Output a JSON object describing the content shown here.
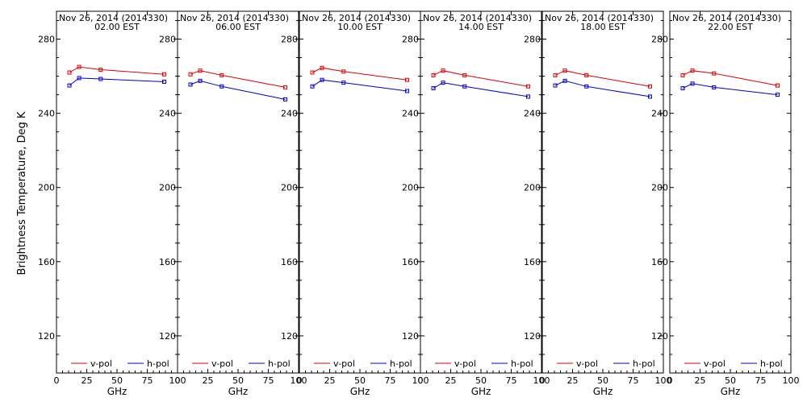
{
  "figure": {
    "ylabel": "Brightness Temperature, Deg K"
  },
  "chart_data": [
    {
      "type": "line",
      "title_line1": "Nov 26, 2014 (2014330)",
      "title_line2": "02.00 EST",
      "xlabel": "GHz",
      "ylabel": "Brightness Temperature, Deg K",
      "xlim": [
        0,
        100
      ],
      "ylim": [
        100,
        295
      ],
      "x_ticks": [
        0,
        25,
        50,
        75,
        100
      ],
      "y_ticks": [
        120,
        160,
        200,
        240,
        280
      ],
      "legend": "bottom",
      "series": [
        {
          "name": "v-pol",
          "color": "#dd0000",
          "x": [
            10.7,
            18.7,
            36.5,
            89.0
          ],
          "y": [
            262,
            265,
            263.5,
            261
          ]
        },
        {
          "name": "h-pol",
          "color": "#0000cc",
          "x": [
            10.7,
            18.7,
            36.5,
            89.0
          ],
          "y": [
            255,
            259,
            258.5,
            257
          ]
        }
      ]
    },
    {
      "type": "line",
      "title_line1": "Nov 26, 2014 (2014330)",
      "title_line2": "06.00 EST",
      "xlabel": "GHz",
      "ylabel": "",
      "xlim": [
        0,
        100
      ],
      "ylim": [
        100,
        295
      ],
      "x_ticks": [
        0,
        25,
        50,
        75,
        100
      ],
      "y_ticks": [
        120,
        160,
        200,
        240,
        280
      ],
      "legend": "bottom",
      "series": [
        {
          "name": "v-pol",
          "color": "#dd0000",
          "x": [
            10.7,
            18.7,
            36.5,
            89.0
          ],
          "y": [
            261,
            263,
            260.5,
            254
          ]
        },
        {
          "name": "h-pol",
          "color": "#0000cc",
          "x": [
            10.7,
            18.7,
            36.5,
            89.0
          ],
          "y": [
            255.5,
            257.5,
            254.5,
            247.5
          ]
        }
      ]
    },
    {
      "type": "line",
      "title_line1": "Nov 26, 2014 (2014330)",
      "title_line2": "10.00 EST",
      "xlabel": "GHz",
      "ylabel": "",
      "xlim": [
        0,
        100
      ],
      "ylim": [
        100,
        295
      ],
      "x_ticks": [
        0,
        25,
        50,
        75,
        100
      ],
      "y_ticks": [
        120,
        160,
        200,
        240,
        280
      ],
      "legend": "bottom",
      "series": [
        {
          "name": "v-pol",
          "color": "#dd0000",
          "x": [
            10.7,
            18.7,
            36.5,
            89.0
          ],
          "y": [
            262,
            264.5,
            262.5,
            258
          ]
        },
        {
          "name": "h-pol",
          "color": "#0000cc",
          "x": [
            10.7,
            18.7,
            36.5,
            89.0
          ],
          "y": [
            254.5,
            258,
            256.5,
            252
          ]
        }
      ]
    },
    {
      "type": "line",
      "title_line1": "Nov 26, 2014 (2014330)",
      "title_line2": "14.00 EST",
      "xlabel": "GHz",
      "ylabel": "",
      "xlim": [
        0,
        100
      ],
      "ylim": [
        100,
        295
      ],
      "x_ticks": [
        0,
        25,
        50,
        75,
        100
      ],
      "y_ticks": [
        120,
        160,
        200,
        240,
        280
      ],
      "legend": "bottom",
      "series": [
        {
          "name": "v-pol",
          "color": "#dd0000",
          "x": [
            10.7,
            18.7,
            36.5,
            89.0
          ],
          "y": [
            260.5,
            263,
            260.5,
            254.5
          ]
        },
        {
          "name": "h-pol",
          "color": "#0000cc",
          "x": [
            10.7,
            18.7,
            36.5,
            89.0
          ],
          "y": [
            253.5,
            256.5,
            254.5,
            249
          ]
        }
      ]
    },
    {
      "type": "line",
      "title_line1": "Nov 26, 2014 (2014330)",
      "title_line2": "18.00 EST",
      "xlabel": "GHz",
      "ylabel": "",
      "xlim": [
        0,
        100
      ],
      "ylim": [
        100,
        295
      ],
      "x_ticks": [
        0,
        25,
        50,
        75,
        100
      ],
      "y_ticks": [
        120,
        160,
        200,
        240,
        280
      ],
      "legend": "bottom",
      "series": [
        {
          "name": "v-pol",
          "color": "#dd0000",
          "x": [
            10.7,
            18.7,
            36.5,
            89.0
          ],
          "y": [
            260.5,
            263,
            260.5,
            254.5
          ]
        },
        {
          "name": "h-pol",
          "color": "#0000cc",
          "x": [
            10.7,
            18.7,
            36.5,
            89.0
          ],
          "y": [
            255,
            257.5,
            254.5,
            249
          ]
        }
      ]
    },
    {
      "type": "line",
      "title_line1": "Nov 26, 2014 (2014330)",
      "title_line2": "22.00 EST",
      "xlabel": "GHz",
      "ylabel": "",
      "xlim": [
        0,
        100
      ],
      "ylim": [
        100,
        295
      ],
      "x_ticks": [
        0,
        25,
        50,
        75,
        100
      ],
      "y_ticks": [
        120,
        160,
        200,
        240,
        280
      ],
      "legend": "bottom",
      "series": [
        {
          "name": "v-pol",
          "color": "#dd0000",
          "x": [
            10.7,
            18.7,
            36.5,
            89.0
          ],
          "y": [
            260.5,
            263,
            261.5,
            255
          ]
        },
        {
          "name": "h-pol",
          "color": "#0000cc",
          "x": [
            10.7,
            18.7,
            36.5,
            89.0
          ],
          "y": [
            253.5,
            256,
            254,
            250
          ]
        }
      ]
    }
  ]
}
